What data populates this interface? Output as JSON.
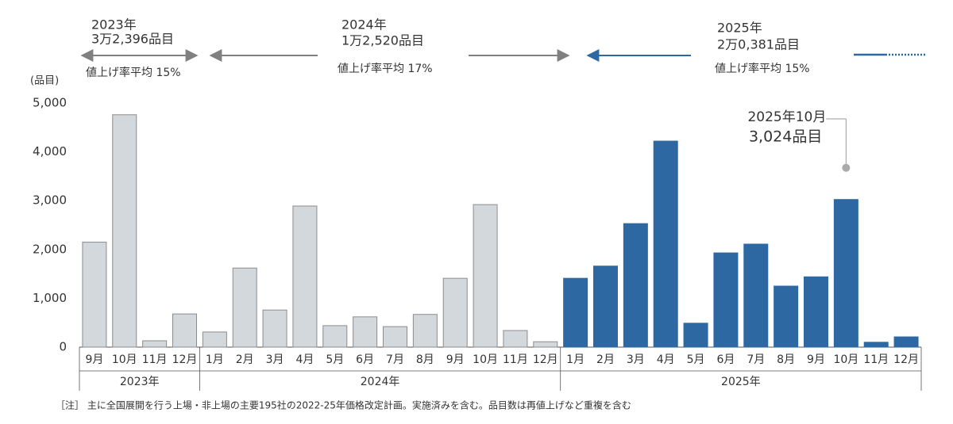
{
  "chart_data": {
    "type": "bar",
    "y_unit_label": "(品目)",
    "ylim": [
      0,
      5000
    ],
    "yticks": [
      0,
      {
        "value": 1000,
        "label": "1,000"
      },
      {
        "value": 2000,
        "label": "2,000"
      },
      {
        "value": 3000,
        "label": "3,000"
      },
      {
        "value": 4000,
        "label": "4,000"
      },
      {
        "value": 5000,
        "label": "5,000"
      }
    ],
    "periods": [
      {
        "year": "2023年",
        "total": "3万2,396品目",
        "rate": "値上げ率平均 15%"
      },
      {
        "year": "2024年",
        "total": "1万2,520品目",
        "rate": "値上げ率平均  17%"
      },
      {
        "year": "2025年",
        "total": "2万0,381品目",
        "rate": "値上げ率平均  15%"
      }
    ],
    "groups": [
      {
        "year": "2023年",
        "color": "#d3d8dc",
        "stroke": "#8c8c8c",
        "categories": [
          "9月",
          "10月",
          "11月",
          "12月"
        ],
        "values": [
          2150,
          4760,
          130,
          680
        ]
      },
      {
        "year": "2024年",
        "color": "#d3d8dc",
        "stroke": "#8c8c8c",
        "categories": [
          "1月",
          "2月",
          "3月",
          "4月",
          "5月",
          "6月",
          "7月",
          "8月",
          "9月",
          "10月",
          "11月",
          "12月"
        ],
        "values": [
          310,
          1620,
          760,
          2890,
          440,
          620,
          420,
          670,
          1410,
          2920,
          340,
          110
        ]
      },
      {
        "year": "2025年",
        "color": "#2d68a3",
        "stroke": "#2d68a3",
        "categories": [
          "1月",
          "2月",
          "3月",
          "4月",
          "5月",
          "6月",
          "7月",
          "8月",
          "9月",
          "10月",
          "11月",
          "12月"
        ],
        "values": [
          1410,
          1660,
          2530,
          4220,
          490,
          1930,
          2110,
          1250,
          1440,
          3024,
          100,
          210
        ],
        "value_labels": [
          null,
          null,
          null,
          null,
          null,
          null,
          null,
          null,
          null,
          "3,024品目",
          null,
          null
        ]
      }
    ],
    "annotation": "2025年10月",
    "note": "［注］ 主に全国展開を行う上場・非上場の主要195社の2022-25年価格改定計画。実施済みを含む。品目数は再値上げなど重複を含む"
  }
}
